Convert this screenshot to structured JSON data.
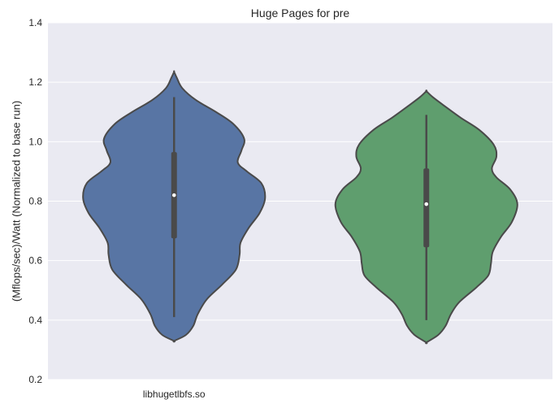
{
  "chart_data": {
    "type": "violin",
    "title": "Huge Pages for pre",
    "xlabel": "",
    "ylabel": "(Mflops/sec)/Watt (Normalized to base run)",
    "ylim": [
      0.2,
      1.4
    ],
    "yticks": [
      "0.2",
      "0.4",
      "0.6",
      "0.8",
      "1.0",
      "1.2",
      "1.4"
    ],
    "grid": true,
    "background": "#eaeaf2",
    "categories": [
      "libhugetlbfs.so",
      ""
    ],
    "series": [
      {
        "color": "#5875a4",
        "kde_extent": [
          0.33,
          1.235
        ],
        "whisker": [
          0.41,
          1.15
        ],
        "quartiles": [
          0.675,
          0.965
        ],
        "median": 0.82,
        "density_profile": [
          [
            0.33,
            0.0
          ],
          [
            0.35,
            0.13
          ],
          [
            0.38,
            0.21
          ],
          [
            0.42,
            0.26
          ],
          [
            0.47,
            0.36
          ],
          [
            0.52,
            0.53
          ],
          [
            0.57,
            0.68
          ],
          [
            0.62,
            0.72
          ],
          [
            0.66,
            0.73
          ],
          [
            0.71,
            0.82
          ],
          [
            0.76,
            0.94
          ],
          [
            0.81,
            1.0
          ],
          [
            0.86,
            0.96
          ],
          [
            0.9,
            0.8
          ],
          [
            0.93,
            0.7
          ],
          [
            0.97,
            0.74
          ],
          [
            1.01,
            0.77
          ],
          [
            1.06,
            0.65
          ],
          [
            1.1,
            0.46
          ],
          [
            1.14,
            0.24
          ],
          [
            1.18,
            0.09
          ],
          [
            1.215,
            0.03
          ],
          [
            1.235,
            0.0
          ]
        ]
      },
      {
        "color": "#5f9e6e",
        "kde_extent": [
          0.325,
          1.17
        ],
        "whisker": [
          0.4,
          1.09
        ],
        "quartiles": [
          0.645,
          0.91
        ],
        "median": 0.79,
        "density_profile": [
          [
            0.325,
            0.0
          ],
          [
            0.35,
            0.13
          ],
          [
            0.38,
            0.21
          ],
          [
            0.42,
            0.27
          ],
          [
            0.46,
            0.36
          ],
          [
            0.51,
            0.55
          ],
          [
            0.55,
            0.68
          ],
          [
            0.59,
            0.71
          ],
          [
            0.63,
            0.73
          ],
          [
            0.68,
            0.82
          ],
          [
            0.73,
            0.94
          ],
          [
            0.79,
            1.0
          ],
          [
            0.84,
            0.92
          ],
          [
            0.88,
            0.77
          ],
          [
            0.91,
            0.72
          ],
          [
            0.95,
            0.77
          ],
          [
            0.99,
            0.74
          ],
          [
            1.04,
            0.58
          ],
          [
            1.08,
            0.38
          ],
          [
            1.12,
            0.2
          ],
          [
            1.15,
            0.07
          ],
          [
            1.17,
            0.0
          ]
        ]
      }
    ]
  }
}
